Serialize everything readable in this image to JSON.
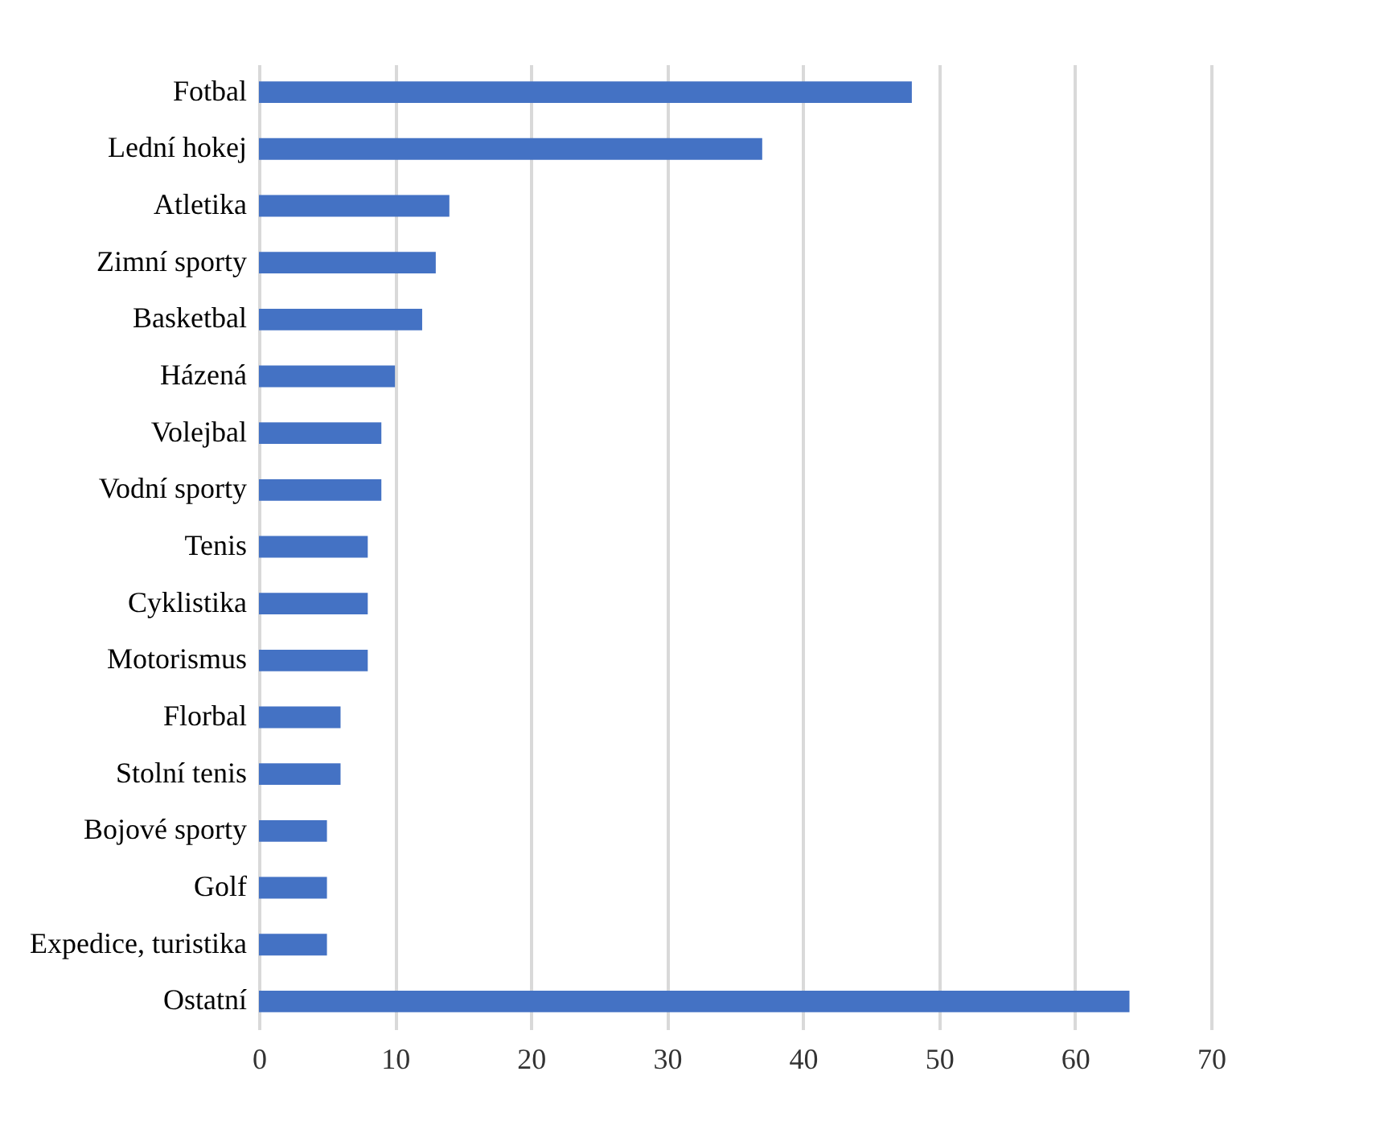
{
  "chart_data": {
    "type": "bar",
    "orientation": "horizontal",
    "categories": [
      "Fotbal",
      "Lední hokej",
      "Atletika",
      "Zimní sporty",
      "Basketbal",
      "Házená",
      "Volejbal",
      "Vodní sporty",
      "Tenis",
      "Cyklistika",
      "Motorismus",
      "Florbal",
      "Stolní tenis",
      "Bojové sporty",
      "Golf",
      "Expedice, turistika",
      "Ostatní"
    ],
    "values": [
      48,
      37,
      14,
      13,
      12,
      10,
      9,
      9,
      8,
      8,
      8,
      6,
      6,
      5,
      5,
      5,
      64
    ],
    "color": "#4472c4",
    "xlim": [
      0,
      70
    ],
    "xticks": [
      0,
      10,
      20,
      30,
      40,
      50,
      60,
      70
    ],
    "grid": "x"
  }
}
